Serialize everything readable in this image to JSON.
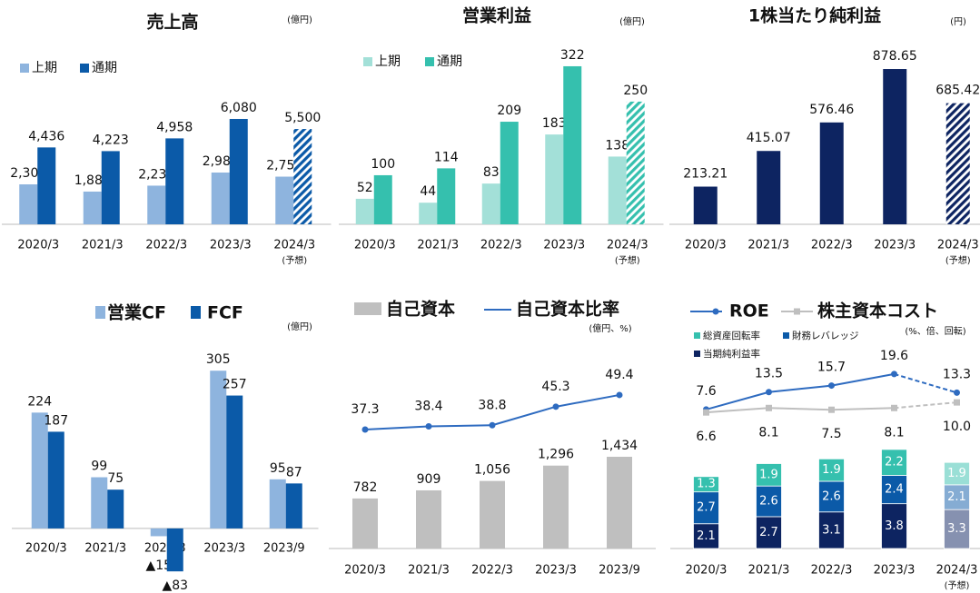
{
  "chart_data": [
    {
      "type": "grouped_bar",
      "title": "売上高",
      "unit": "(億円)",
      "categories": [
        "2020/3",
        "2021/3",
        "2022/3",
        "2023/3",
        "2024/3"
      ],
      "category_notes": [
        null,
        null,
        null,
        null,
        "(予想)"
      ],
      "series": [
        {
          "name": "上期",
          "color": "#8eb4de",
          "values": [
            2306,
            1888,
            2230,
            2987,
            2750
          ],
          "value_labels": [
            "2,306",
            "1,888",
            "2,230",
            "2,987",
            "2,750"
          ]
        },
        {
          "name": "通期",
          "color": "#0b5aa8",
          "values": [
            4436,
            4223,
            4958,
            6080,
            5500
          ],
          "value_labels": [
            "4,436",
            "4,223",
            "4,958",
            "6,080",
            "5,500"
          ]
        }
      ],
      "ylim": [
        0,
        9800
      ]
    },
    {
      "type": "grouped_bar",
      "title": "営業利益",
      "unit": "(億円)",
      "categories": [
        "2020/3",
        "2021/3",
        "2022/3",
        "2023/3",
        "2024/3"
      ],
      "category_notes": [
        null,
        null,
        null,
        null,
        "(予想)"
      ],
      "series": [
        {
          "name": "上期",
          "color": "#a3e0d8",
          "values": [
            52,
            44,
            83,
            183,
            138
          ]
        },
        {
          "name": "通期",
          "color": "#35c0ae",
          "values": [
            100,
            114,
            209,
            322,
            250
          ]
        }
      ],
      "ylim": [
        0,
        346
      ]
    },
    {
      "type": "bar",
      "title": "1株当たり純利益",
      "unit": "(円)",
      "categories": [
        "2020/3",
        "2021/3",
        "2022/3",
        "2023/3",
        "2024/3"
      ],
      "category_notes": [
        null,
        null,
        null,
        null,
        "(予想)"
      ],
      "values": [
        213.21,
        415.07,
        576.46,
        878.65,
        685.42
      ],
      "color": "#0d2461",
      "ylim": [
        0,
        961
      ]
    },
    {
      "type": "grouped_bar",
      "unit": "(億円)",
      "categories": [
        "2020/3",
        "2021/3",
        "2022/3",
        "2023/3",
        "2023/9"
      ],
      "series": [
        {
          "name": "営業CF",
          "color": "#8eb4de",
          "values": [
            224,
            99,
            -15,
            305,
            95
          ],
          "value_labels": [
            "224",
            "99",
            "▲15",
            "305",
            "95"
          ]
        },
        {
          "name": "FCF",
          "color": "#0b5aa8",
          "values": [
            187,
            75,
            -83,
            257,
            87
          ],
          "value_labels": [
            "187",
            "75",
            "▲83",
            "257",
            "87"
          ]
        }
      ],
      "ylim": [
        -102,
        337
      ]
    },
    {
      "type": "bar_line",
      "unit": "(億円、%)",
      "categories": [
        "2020/3",
        "2021/3",
        "2022/3",
        "2023/3",
        "2023/9"
      ],
      "series": [
        {
          "name": "自己資本",
          "color": "#bfbfbf",
          "values": [
            782,
            909,
            1056,
            1296,
            1434
          ],
          "value_labels": [
            "782",
            "909",
            "1,056",
            "1,296",
            "1,434"
          ]
        },
        {
          "name": "自己資本比率",
          "color": "#2e6bc0",
          "axis": "y2",
          "values": [
            37.3,
            38.4,
            38.8,
            45.3,
            49.4
          ]
        }
      ],
      "ylim": [
        0,
        3890
      ],
      "y2lim": [
        -4.4,
        82.8
      ]
    },
    {
      "type": "stacked_bar_line",
      "unit": "(%、倍、回転)",
      "categories": [
        "2020/3",
        "2021/3",
        "2022/3",
        "2023/3",
        "2024/3"
      ],
      "category_notes": [
        null,
        null,
        null,
        null,
        "(予想)"
      ],
      "series": [
        {
          "name": "当期純利益率",
          "color": "#0d2461",
          "values": [
            2.1,
            2.7,
            3.1,
            3.8,
            3.3
          ]
        },
        {
          "name": "財務レバレッジ",
          "color": "#0b5aa8",
          "values": [
            2.7,
            2.6,
            2.6,
            2.4,
            2.1
          ]
        },
        {
          "name": "総資産回転率",
          "color": "#35c0ae",
          "values": [
            1.3,
            1.9,
            1.9,
            2.2,
            1.9
          ]
        },
        {
          "name": "ROE",
          "color": "#2e6bc0",
          "axis": "y2",
          "values": [
            7.6,
            13.5,
            15.7,
            19.6,
            13.3
          ]
        },
        {
          "name": "株主資本コスト",
          "color": "#bfbfbf",
          "axis": "y2",
          "values": [
            6.6,
            8.1,
            7.5,
            8.1,
            10.0
          ],
          "value_labels": [
            "6.6",
            "8.1",
            "7.5",
            "8.1",
            "10.0"
          ]
        }
      ],
      "ylim": [
        0,
        21.1
      ],
      "y2lim": [
        -39.5,
        44.8
      ]
    }
  ]
}
